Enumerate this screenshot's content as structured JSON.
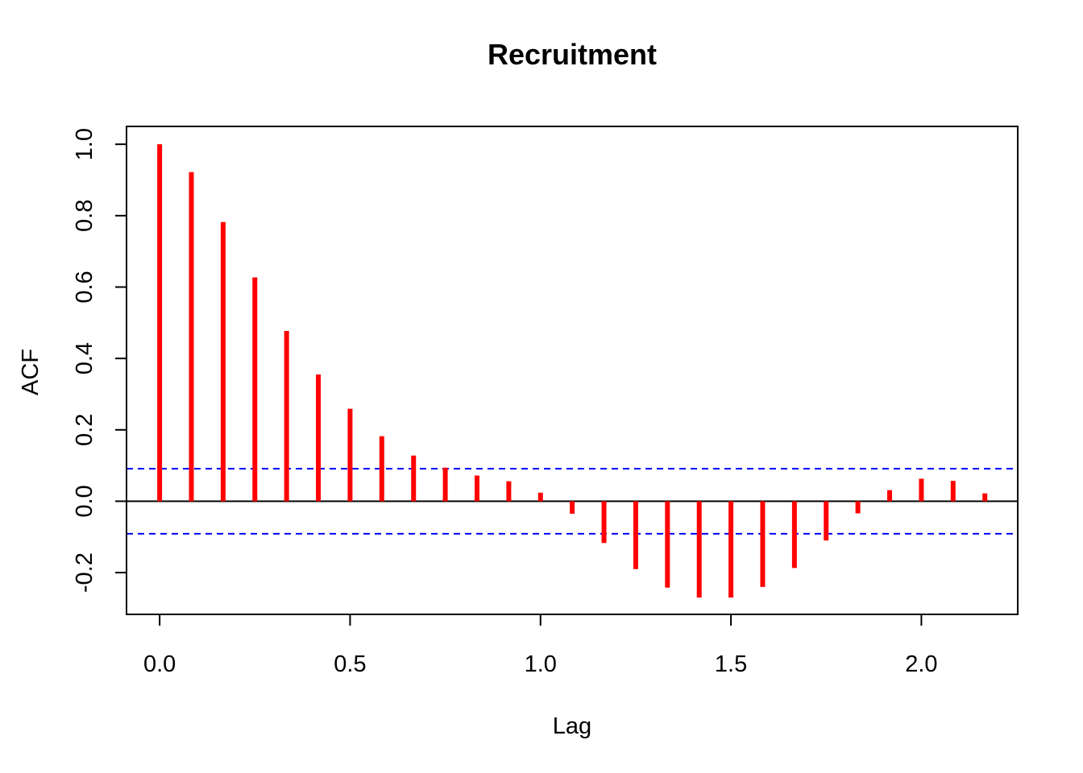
{
  "chart_data": {
    "type": "bar",
    "title": "Recruitment",
    "xlabel": "Lag",
    "ylabel": "ACF",
    "xlim": [
      -0.087,
      2.253
    ],
    "ylim": [
      -0.317,
      1.05
    ],
    "x_ticks": [
      0.0,
      0.5,
      1.0,
      1.5,
      2.0
    ],
    "x_tick_labels": [
      "0.0",
      "0.5",
      "1.0",
      "1.5",
      "2.0"
    ],
    "y_ticks": [
      -0.2,
      0.0,
      0.2,
      0.4,
      0.6,
      0.8,
      1.0
    ],
    "y_tick_labels": [
      "-0.2",
      "0.0",
      "0.2",
      "0.4",
      "0.6",
      "0.8",
      "1.0"
    ],
    "confidence_bound": 0.091,
    "grid": false,
    "colors": {
      "bars": "#ff0000",
      "confidence": "#0000ff",
      "zero_line": "#000000"
    },
    "x": [
      0.0,
      0.0833,
      0.1667,
      0.25,
      0.3333,
      0.4167,
      0.5,
      0.5833,
      0.6667,
      0.75,
      0.8333,
      0.9167,
      1.0,
      1.0833,
      1.1667,
      1.25,
      1.3333,
      1.4167,
      1.5,
      1.5833,
      1.6667,
      1.75,
      1.8333,
      1.9167,
      2.0,
      2.0833,
      2.1667
    ],
    "values": [
      1.0,
      0.922,
      0.782,
      0.627,
      0.477,
      0.355,
      0.259,
      0.182,
      0.128,
      0.094,
      0.072,
      0.056,
      0.024,
      -0.035,
      -0.117,
      -0.19,
      -0.242,
      -0.27,
      -0.27,
      -0.24,
      -0.187,
      -0.11,
      -0.034,
      0.031,
      0.063,
      0.057,
      0.022
    ]
  }
}
